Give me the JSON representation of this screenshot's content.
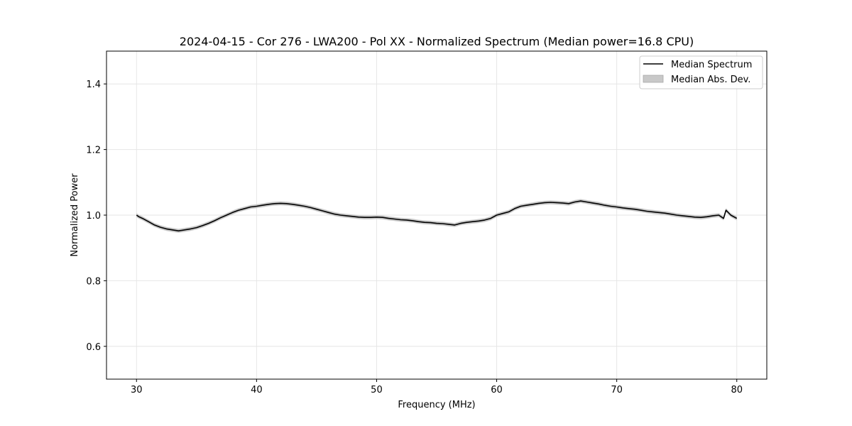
{
  "chart_data": {
    "type": "line",
    "title": "2024-04-15 - Cor 276 - LWA200 - Pol XX - Normalized Spectrum (Median power=16.8 CPU)",
    "xlabel": "Frequency (MHz)",
    "ylabel": "Normalized Power",
    "xlim": [
      27.5,
      82.5
    ],
    "ylim": [
      0.5,
      1.5
    ],
    "xticks": [
      30,
      40,
      50,
      60,
      70,
      80
    ],
    "xtick_labels": [
      "30",
      "40",
      "50",
      "60",
      "70",
      "80"
    ],
    "yticks": [
      0.6,
      0.8,
      1.0,
      1.2,
      1.4
    ],
    "ytick_labels": [
      "0.6",
      "0.8",
      "1.0",
      "1.2",
      "1.4"
    ],
    "grid": true,
    "legend_position": "top-right",
    "series": [
      {
        "name": "Median Spectrum",
        "color": "#000000",
        "x": [
          30.0,
          30.2,
          30.5,
          31.0,
          31.5,
          32.0,
          32.5,
          33.0,
          33.5,
          34.0,
          34.5,
          35.0,
          35.5,
          36.0,
          36.5,
          37.0,
          37.5,
          38.0,
          38.5,
          39.0,
          39.5,
          40.0,
          40.5,
          41.0,
          41.5,
          42.0,
          42.5,
          43.0,
          43.5,
          44.0,
          44.5,
          45.0,
          45.5,
          46.0,
          46.5,
          47.0,
          47.5,
          48.0,
          48.5,
          49.0,
          49.5,
          50.0,
          50.5,
          51.0,
          51.5,
          52.0,
          52.5,
          53.0,
          53.5,
          54.0,
          54.5,
          55.0,
          55.5,
          56.0,
          56.5,
          57.0,
          57.5,
          58.0,
          58.5,
          59.0,
          59.5,
          60.0,
          60.5,
          61.0,
          61.5,
          62.0,
          62.5,
          63.0,
          63.5,
          64.0,
          64.5,
          65.0,
          65.5,
          66.0,
          66.5,
          67.0,
          67.5,
          68.0,
          68.5,
          69.0,
          69.5,
          70.0,
          70.5,
          71.0,
          71.5,
          72.0,
          72.5,
          73.0,
          73.5,
          74.0,
          74.5,
          75.0,
          75.5,
          76.0,
          76.5,
          77.0,
          77.5,
          78.0,
          78.5,
          78.9,
          79.1,
          79.5,
          80.0
        ],
        "values": [
          1.0,
          0.995,
          0.99,
          0.98,
          0.97,
          0.963,
          0.958,
          0.955,
          0.952,
          0.955,
          0.958,
          0.962,
          0.968,
          0.975,
          0.983,
          0.992,
          1.0,
          1.008,
          1.015,
          1.02,
          1.025,
          1.027,
          1.03,
          1.033,
          1.035,
          1.036,
          1.035,
          1.033,
          1.03,
          1.027,
          1.023,
          1.018,
          1.013,
          1.008,
          1.003,
          1.0,
          0.998,
          0.996,
          0.994,
          0.993,
          0.993,
          0.994,
          0.993,
          0.99,
          0.988,
          0.986,
          0.985,
          0.983,
          0.98,
          0.978,
          0.977,
          0.975,
          0.974,
          0.972,
          0.97,
          0.975,
          0.978,
          0.98,
          0.982,
          0.985,
          0.99,
          1.0,
          1.005,
          1.01,
          1.02,
          1.027,
          1.03,
          1.033,
          1.036,
          1.038,
          1.039,
          1.038,
          1.037,
          1.035,
          1.04,
          1.043,
          1.04,
          1.037,
          1.034,
          1.03,
          1.027,
          1.025,
          1.022,
          1.02,
          1.018,
          1.015,
          1.012,
          1.01,
          1.008,
          1.006,
          1.003,
          1.0,
          0.998,
          0.996,
          0.994,
          0.993,
          0.995,
          0.998,
          1.0,
          0.99,
          1.015,
          1.0,
          0.99
        ]
      }
    ],
    "band": {
      "name": "Median Abs. Dev.",
      "color": "#c8c8c8",
      "half_width": 0.006
    }
  }
}
